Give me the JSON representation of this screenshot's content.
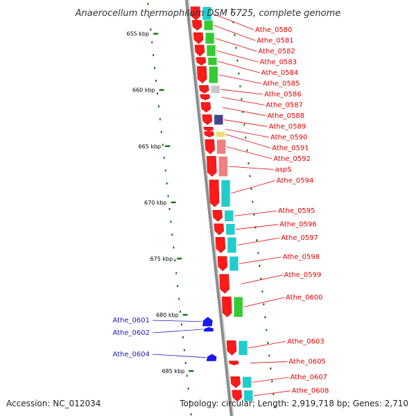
{
  "title": "Anaerocellum thermophilum DSM 6725, complete genome",
  "footer": {
    "accession": "Accession: NC_012034",
    "topology": "Topology: circular; Length: 2,919,718 bp; Genes: 2,710"
  },
  "colors": {
    "backbone": "#8c8c8c",
    "forward_cds": "#ff1a1a",
    "reverse_cds": "#1a1aff",
    "label_forward": "#e00000",
    "label_reverse": "#1a1ab0",
    "tick": "#117711",
    "cog_green": "#33cc33",
    "cog_cyan": "#22cccc",
    "cog_salmon": "#f08080",
    "cog_navy": "#44448a",
    "cog_yellow": "#f0e070",
    "cog_grey": "#c8c8c8"
  },
  "scale_ticks": [
    {
      "kbp": 655,
      "label": "655 kbp"
    },
    {
      "kbp": 660,
      "label": "660 kbp"
    },
    {
      "kbp": 665,
      "label": "665 kbp"
    },
    {
      "kbp": 670,
      "label": "670 kbp"
    },
    {
      "kbp": 675,
      "label": "675 kbp"
    },
    {
      "kbp": 680,
      "label": "680 kbp"
    },
    {
      "kbp": 685,
      "label": "685 kbp"
    }
  ],
  "genes_right": [
    {
      "name": "Athe_0580",
      "kbp": 652.6,
      "len": 1.2,
      "cog": "cog_cyan"
    },
    {
      "name": "Athe_0581",
      "kbp": 653.8,
      "len": 0.9,
      "cog": "cog_green"
    },
    {
      "name": "Athe_0582",
      "kbp": 654.9,
      "len": 1.0,
      "cog": "cog_green"
    },
    {
      "name": "Athe_0583",
      "kbp": 656.0,
      "len": 1.0,
      "cog": "cog_green"
    },
    {
      "name": "Athe_0584",
      "kbp": 657.1,
      "len": 0.7,
      "cog": "cog_green"
    },
    {
      "name": "Athe_0585",
      "kbp": 657.9,
      "len": 1.5,
      "cog": "cog_green"
    },
    {
      "name": "Athe_0586",
      "kbp": 659.6,
      "len": 0.7,
      "cog": "cog_grey"
    },
    {
      "name": "Athe_0587",
      "kbp": 660.4,
      "len": 0.5,
      "cog": ""
    },
    {
      "name": "Athe_0588",
      "kbp": 661.1,
      "len": 0.9,
      "cog": ""
    },
    {
      "name": "Athe_0589",
      "kbp": 662.2,
      "len": 0.9,
      "cog": "cog_navy"
    },
    {
      "name": "Athe_0590",
      "kbp": 663.3,
      "len": 0.3,
      "cog": ""
    },
    {
      "name": "Athe_0591",
      "kbp": 663.7,
      "len": 0.5,
      "cog": "cog_yellow"
    },
    {
      "name": "Athe_0592",
      "kbp": 664.4,
      "len": 1.3,
      "cog": "cog_salmon"
    },
    {
      "name": "aspS",
      "kbp": 665.9,
      "len": 1.8,
      "cog": "cog_salmon"
    },
    {
      "name": "Athe_0594",
      "kbp": 668.0,
      "len": 2.4,
      "cog": "cog_cyan"
    },
    {
      "name": "Athe_0595",
      "kbp": 670.7,
      "len": 1.0,
      "cog": "cog_cyan"
    },
    {
      "name": "Athe_0596",
      "kbp": 671.9,
      "len": 1.0,
      "cog": "cog_cyan"
    },
    {
      "name": "Athe_0597",
      "kbp": 673.1,
      "len": 1.4,
      "cog": "cog_cyan"
    },
    {
      "name": "Athe_0598",
      "kbp": 674.8,
      "len": 1.3,
      "cog": "cog_cyan"
    },
    {
      "name": "Athe_0599",
      "kbp": 676.4,
      "len": 1.7,
      "cog": ""
    },
    {
      "name": "Athe_0600",
      "kbp": 678.4,
      "len": 1.8,
      "cog": "cog_green"
    },
    {
      "name": "Athe_0603",
      "kbp": 682.3,
      "len": 1.3,
      "cog": "cog_cyan"
    },
    {
      "name": "Athe_0605",
      "kbp": 684.1,
      "len": 0.3,
      "cog": ""
    },
    {
      "name": "Athe_0607",
      "kbp": 685.5,
      "len": 1.0,
      "cog": "cog_cyan"
    },
    {
      "name": "Athe_0608",
      "kbp": 686.7,
      "len": 1.0,
      "cog": "cog_cyan"
    }
  ],
  "genes_left": [
    {
      "name": "Athe_0601",
      "kbp": 680.2,
      "len": 0.8
    },
    {
      "name": "Athe_0602",
      "kbp": 681.1,
      "len": 0.3
    },
    {
      "name": "Athe_0604",
      "kbp": 683.5,
      "len": 0.6
    }
  ]
}
